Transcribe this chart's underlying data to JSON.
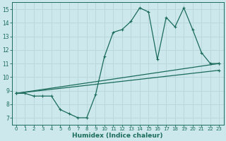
{
  "xlabel": "Humidex (Indice chaleur)",
  "background_color": "#cce8ec",
  "grid_color": "#b8d8dc",
  "line_color": "#1a6b5a",
  "xlim": [
    -0.5,
    23.5
  ],
  "ylim": [
    6.5,
    15.5
  ],
  "xticks": [
    0,
    1,
    2,
    3,
    4,
    5,
    6,
    7,
    8,
    9,
    10,
    11,
    12,
    13,
    14,
    15,
    16,
    17,
    18,
    19,
    20,
    21,
    22,
    23
  ],
  "yticks": [
    7,
    8,
    9,
    10,
    11,
    12,
    13,
    14,
    15
  ],
  "series1_x": [
    0,
    1,
    2,
    3,
    4,
    5,
    6,
    7,
    8,
    9,
    10,
    11,
    12,
    13,
    14,
    15,
    16,
    17,
    18,
    19,
    20,
    21,
    22,
    23
  ],
  "series1_y": [
    8.8,
    8.8,
    8.6,
    8.6,
    8.6,
    7.6,
    7.3,
    7.0,
    7.0,
    8.7,
    11.5,
    13.3,
    13.5,
    14.1,
    15.1,
    14.8,
    11.3,
    14.4,
    13.7,
    15.1,
    13.5,
    11.8,
    11.0,
    11.0
  ],
  "series2_x": [
    0,
    23
  ],
  "series2_y": [
    8.8,
    11.0
  ],
  "series3_x": [
    0,
    23
  ],
  "series3_y": [
    8.8,
    10.5
  ]
}
